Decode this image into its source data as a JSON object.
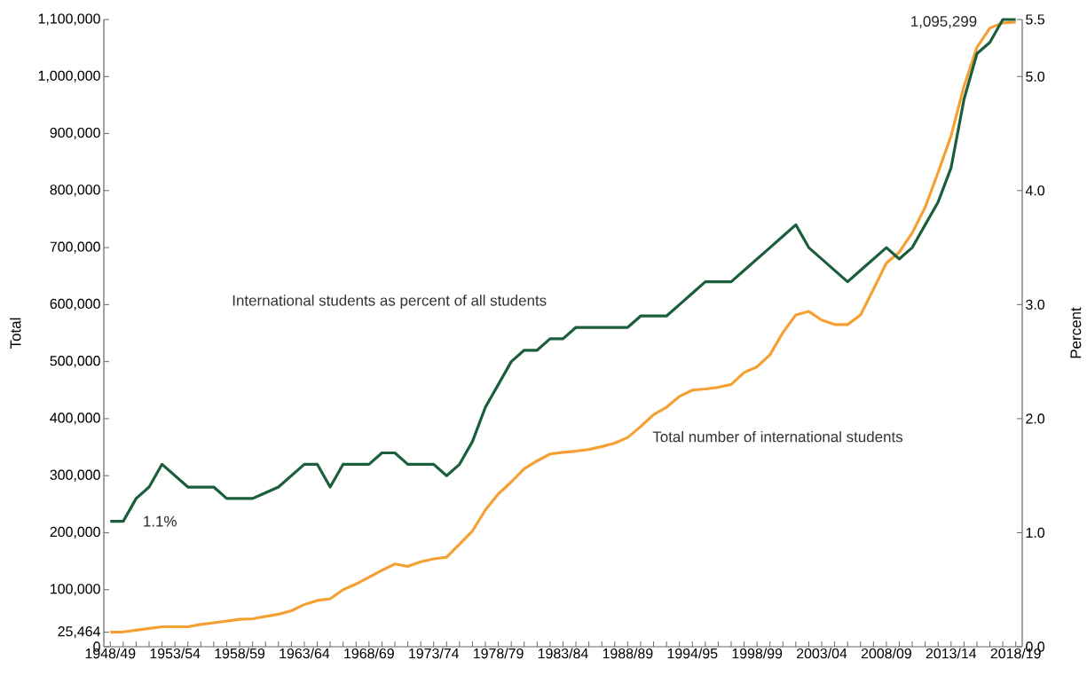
{
  "chart_data": {
    "type": "line",
    "ylabel": "Total",
    "y2label": "Percent",
    "categories": [
      "1948/49",
      null,
      null,
      null,
      null,
      "1953/54",
      null,
      null,
      null,
      null,
      "1958/59",
      null,
      null,
      null,
      null,
      "1963/64",
      null,
      null,
      null,
      null,
      "1968/69",
      null,
      null,
      null,
      null,
      "1973/74",
      null,
      null,
      null,
      null,
      "1978/79",
      null,
      null,
      null,
      null,
      "1983/84",
      null,
      null,
      null,
      null,
      "1988/89",
      null,
      null,
      null,
      null,
      "1994/95",
      null,
      null,
      null,
      null,
      "1998/99",
      null,
      null,
      null,
      null,
      "2003/04",
      null,
      null,
      null,
      null,
      "2008/09",
      null,
      null,
      null,
      null,
      "2013/14",
      null,
      null,
      null,
      null,
      "2018/19"
    ],
    "series": [
      {
        "name": "Total number of international students",
        "color": "#f5a033",
        "values": [
          25464,
          26000,
          29000,
          32000,
          35000,
          35000,
          35000,
          39000,
          42000,
          45000,
          48000,
          49000,
          53000,
          57000,
          63000,
          74000,
          81000,
          84000,
          100000,
          110000,
          122000,
          134000,
          145000,
          141000,
          149000,
          154000,
          157000,
          180000,
          203000,
          240000,
          268000,
          289000,
          312000,
          326000,
          338000,
          341000,
          343000,
          346000,
          351000,
          357000,
          367000,
          386000,
          407000,
          420000,
          439000,
          450000,
          452000,
          455000,
          460000,
          481000,
          491000,
          512000,
          551000,
          582000,
          588000,
          573000,
          565000,
          565000,
          582000,
          627000,
          673000,
          692000,
          726000,
          771000,
          832000,
          896000,
          983000,
          1051000,
          1085000,
          1094000,
          1095299
        ]
      },
      {
        "name": "International students as percent of all students",
        "color": "#1b5e3b",
        "axis": "y2",
        "values": [
          1.1,
          1.1,
          1.3,
          1.4,
          1.6,
          1.5,
          1.4,
          1.4,
          1.4,
          1.3,
          1.3,
          1.3,
          1.35,
          1.4,
          1.5,
          1.6,
          1.6,
          1.4,
          1.6,
          1.6,
          1.6,
          1.7,
          1.7,
          1.6,
          1.6,
          1.6,
          1.5,
          1.6,
          1.8,
          2.1,
          2.3,
          2.5,
          2.6,
          2.6,
          2.7,
          2.7,
          2.8,
          2.8,
          2.8,
          2.8,
          2.8,
          2.9,
          2.9,
          2.9,
          3.0,
          3.1,
          3.2,
          3.2,
          3.2,
          3.3,
          3.4,
          3.5,
          3.6,
          3.7,
          3.5,
          3.4,
          3.3,
          3.2,
          3.3,
          3.4,
          3.5,
          3.4,
          3.5,
          3.7,
          3.9,
          4.2,
          4.8,
          5.2,
          5.3,
          5.5,
          5.5
        ]
      }
    ],
    "ylim": [
      0,
      1100000
    ],
    "yticks": [
      0,
      {
        "value": 25464,
        "label": "25,464"
      },
      {
        "value": 100000,
        "label": "100,000"
      },
      {
        "value": 200000,
        "label": "200,000"
      },
      {
        "value": 300000,
        "label": "300,000"
      },
      {
        "value": 400000,
        "label": "400,000"
      },
      {
        "value": 500000,
        "label": "500,000"
      },
      {
        "value": 600000,
        "label": "600,000"
      },
      {
        "value": 700000,
        "label": "700,000"
      },
      {
        "value": 800000,
        "label": "800,000"
      },
      {
        "value": 900000,
        "label": "900,000"
      },
      {
        "value": 1000000,
        "label": "1,000,000"
      },
      {
        "value": 1100000,
        "label": "1,100,000"
      }
    ],
    "y2lim": [
      0,
      5.5
    ],
    "y2ticks": [
      {
        "value": 0,
        "label": "0.0"
      },
      {
        "value": 1,
        "label": "1.0"
      },
      {
        "value": 2,
        "label": "2.0"
      },
      {
        "value": 3,
        "label": "3.0"
      },
      {
        "value": 4,
        "label": "4.0"
      },
      {
        "value": 5,
        "label": "5.0"
      },
      {
        "value": 5.5,
        "label": "5.5"
      }
    ],
    "annotations": [
      "1.1%",
      {
        "text": "1,095,299",
        "x": "2018/19",
        "y": 1095299
      }
    ],
    "grid": false,
    "legend": false,
    "marker": "none",
    "line_style": "solid"
  }
}
